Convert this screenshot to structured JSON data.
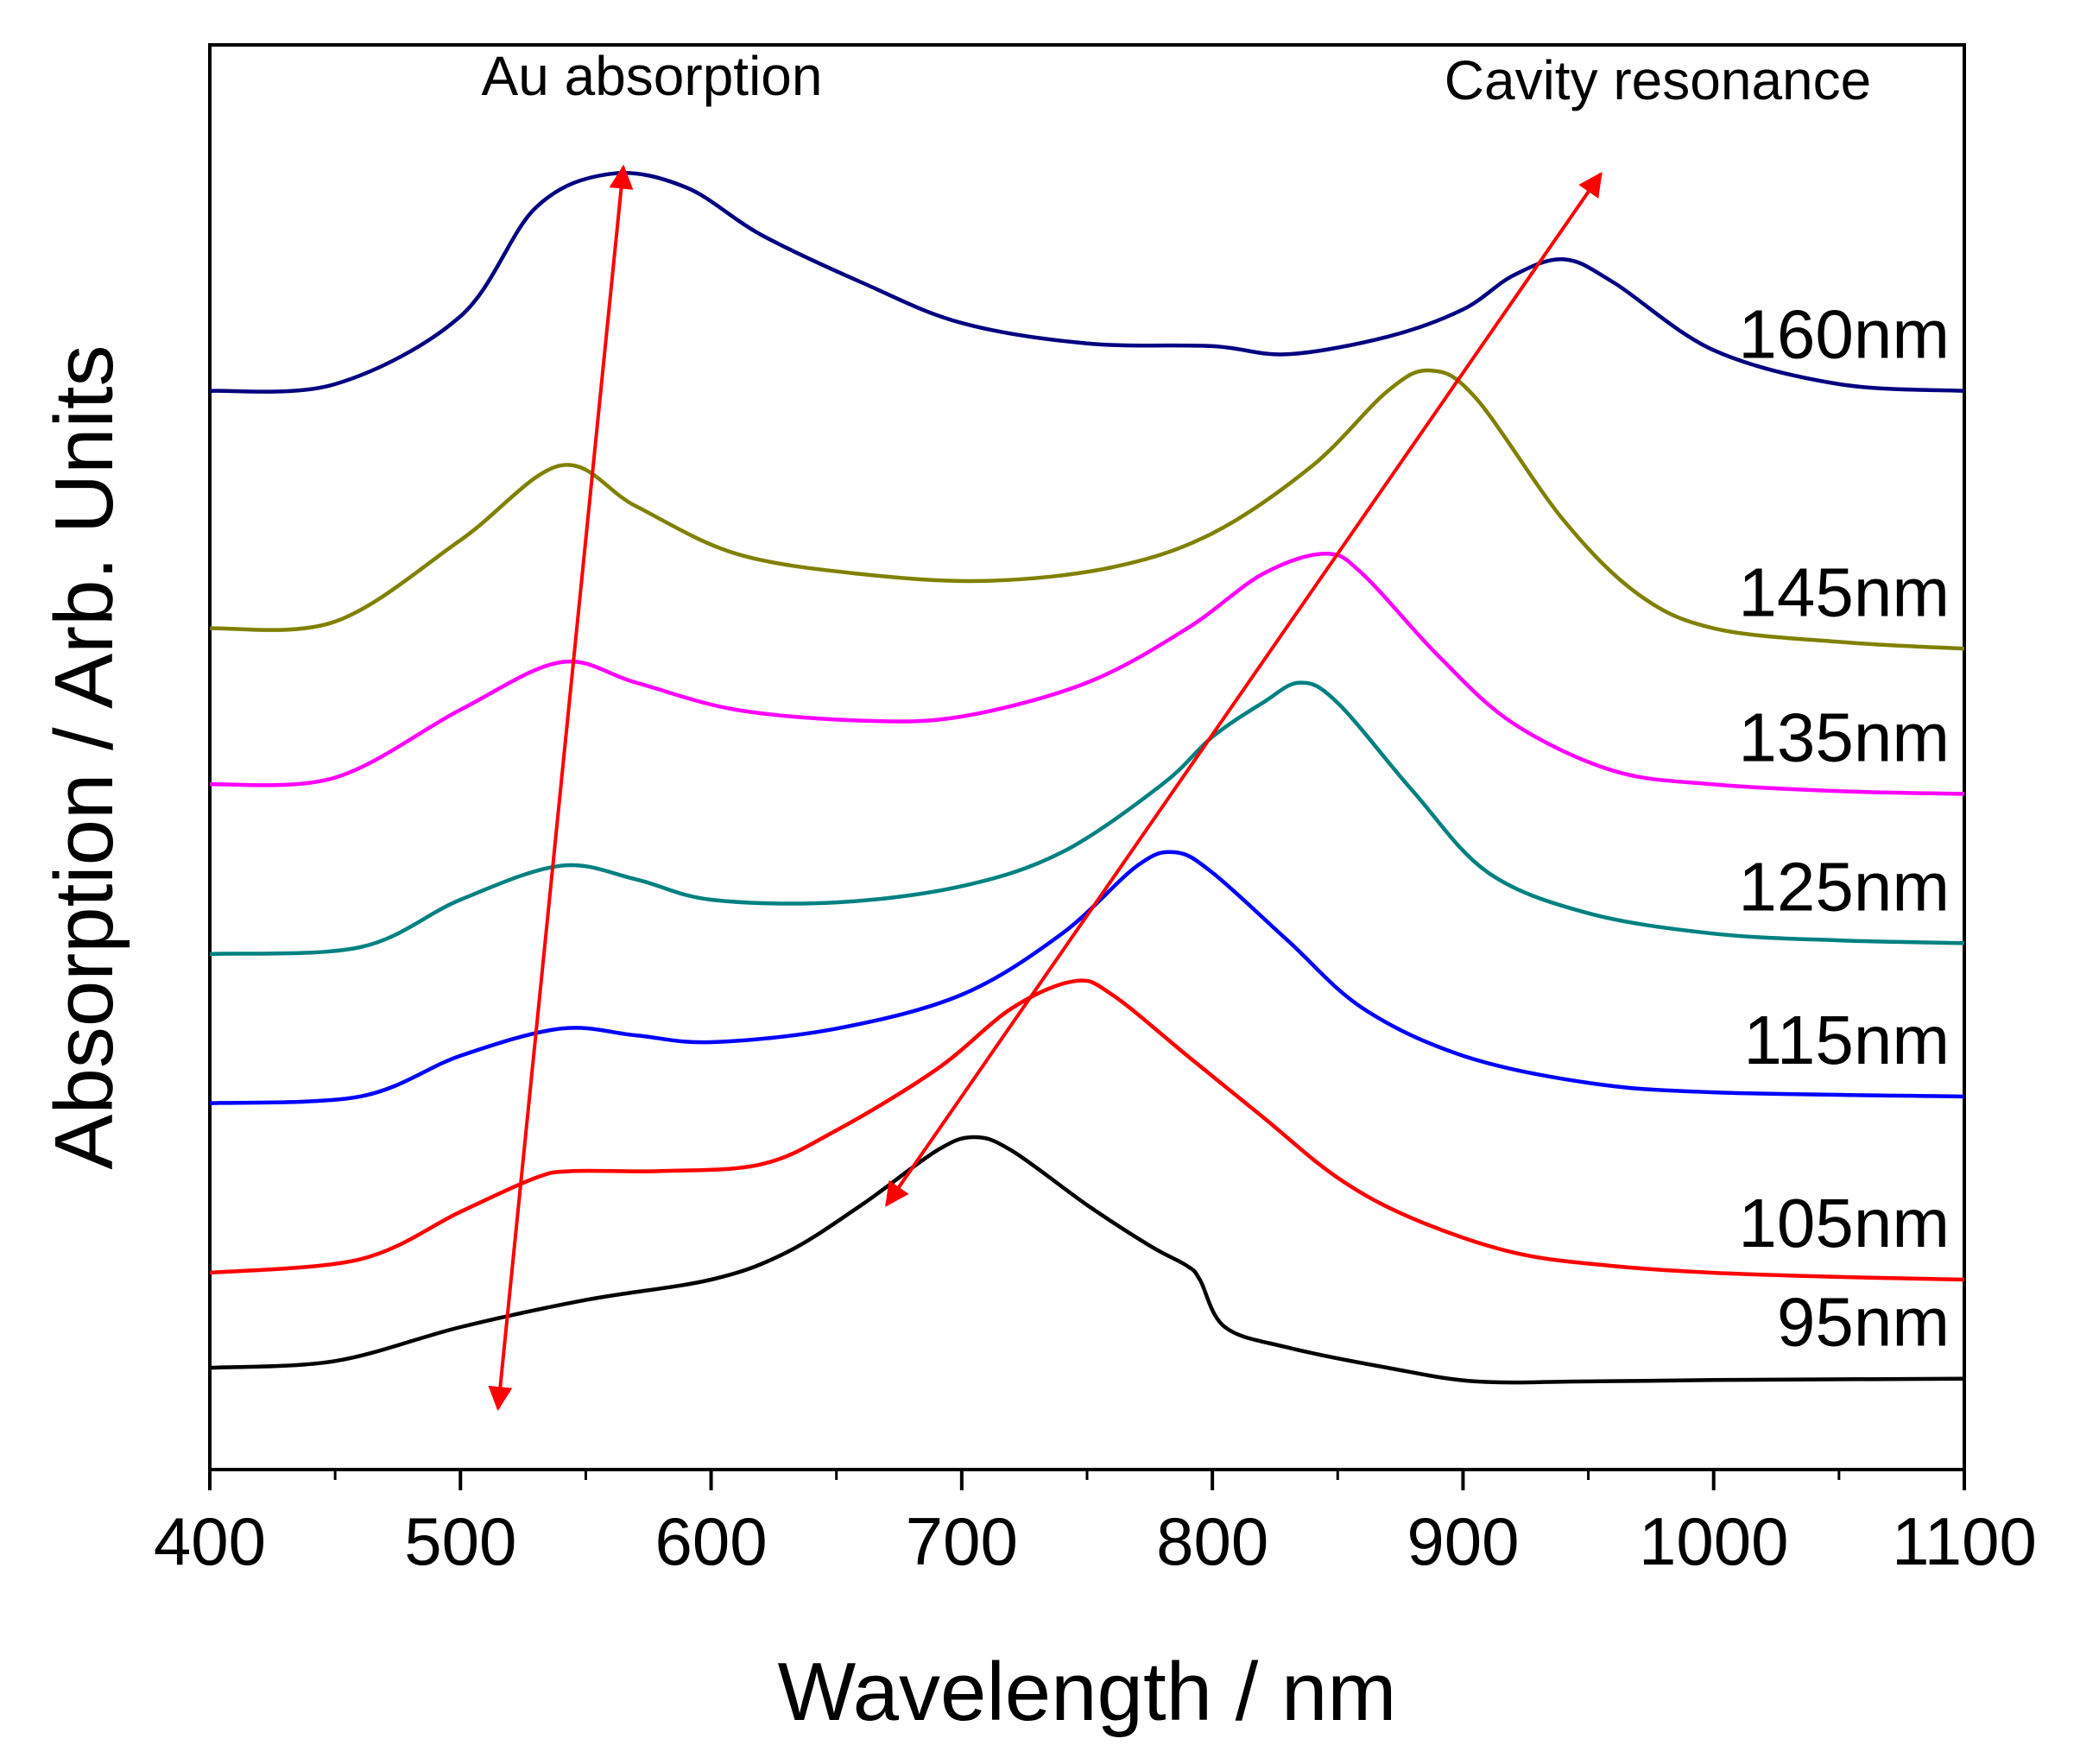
{
  "chart_data": {
    "type": "line",
    "title": "",
    "xlabel": "Wavelength / nm",
    "ylabel": "Absorption / Arb. Units",
    "xlim": [
      400,
      1100
    ],
    "ylim": [
      0,
      10.5
    ],
    "xticks": [
      400,
      500,
      600,
      700,
      800,
      900,
      1000,
      1100
    ],
    "grid": false,
    "legend": "inline labels at right end of each curve",
    "series": [
      {
        "name": "95nm",
        "color": "#000000",
        "points": [
          [
            400,
            0.75
          ],
          [
            450,
            0.8
          ],
          [
            500,
            1.05
          ],
          [
            550,
            1.25
          ],
          [
            600,
            1.4
          ],
          [
            630,
            1.6
          ],
          [
            660,
            1.95
          ],
          [
            690,
            2.35
          ],
          [
            705,
            2.45
          ],
          [
            720,
            2.35
          ],
          [
            750,
            1.95
          ],
          [
            775,
            1.65
          ],
          [
            790,
            1.5
          ],
          [
            795,
            1.4
          ],
          [
            805,
            1.05
          ],
          [
            830,
            0.9
          ],
          [
            870,
            0.75
          ],
          [
            905,
            0.65
          ],
          [
            950,
            0.65
          ],
          [
            1000,
            0.66
          ],
          [
            1100,
            0.67
          ]
        ]
      },
      {
        "name": "105nm",
        "color": "#ff0000",
        "points": [
          [
            400,
            1.45
          ],
          [
            460,
            1.55
          ],
          [
            500,
            1.9
          ],
          [
            530,
            2.15
          ],
          [
            545,
            2.2
          ],
          [
            580,
            2.2
          ],
          [
            620,
            2.25
          ],
          [
            650,
            2.5
          ],
          [
            690,
            2.95
          ],
          [
            720,
            3.4
          ],
          [
            745,
            3.6
          ],
          [
            760,
            3.5
          ],
          [
            790,
            3.05
          ],
          [
            820,
            2.6
          ],
          [
            850,
            2.15
          ],
          [
            880,
            1.85
          ],
          [
            920,
            1.6
          ],
          [
            960,
            1.5
          ],
          [
            1000,
            1.45
          ],
          [
            1050,
            1.42
          ],
          [
            1100,
            1.4
          ]
        ]
      },
      {
        "name": "115nm",
        "color": "#0000ff",
        "points": [
          [
            400,
            2.7
          ],
          [
            460,
            2.75
          ],
          [
            500,
            3.05
          ],
          [
            540,
            3.25
          ],
          [
            570,
            3.2
          ],
          [
            600,
            3.15
          ],
          [
            650,
            3.25
          ],
          [
            700,
            3.5
          ],
          [
            740,
            3.95
          ],
          [
            770,
            4.45
          ],
          [
            785,
            4.55
          ],
          [
            800,
            4.4
          ],
          [
            830,
            3.9
          ],
          [
            860,
            3.4
          ],
          [
            900,
            3.05
          ],
          [
            950,
            2.85
          ],
          [
            1000,
            2.78
          ],
          [
            1100,
            2.75
          ]
        ]
      },
      {
        "name": "125nm",
        "color": "#008080",
        "points": [
          [
            400,
            3.8
          ],
          [
            460,
            3.85
          ],
          [
            500,
            4.2
          ],
          [
            540,
            4.45
          ],
          [
            570,
            4.35
          ],
          [
            600,
            4.2
          ],
          [
            650,
            4.18
          ],
          [
            700,
            4.3
          ],
          [
            740,
            4.55
          ],
          [
            780,
            5.05
          ],
          [
            800,
            5.4
          ],
          [
            820,
            5.65
          ],
          [
            835,
            5.8
          ],
          [
            850,
            5.65
          ],
          [
            880,
            5.0
          ],
          [
            910,
            4.4
          ],
          [
            950,
            4.1
          ],
          [
            1000,
            3.95
          ],
          [
            1050,
            3.9
          ],
          [
            1100,
            3.88
          ]
        ]
      },
      {
        "name": "135nm",
        "color": "#ff00ff",
        "points": [
          [
            400,
            5.05
          ],
          [
            450,
            5.1
          ],
          [
            500,
            5.6
          ],
          [
            540,
            5.95
          ],
          [
            570,
            5.8
          ],
          [
            610,
            5.6
          ],
          [
            660,
            5.52
          ],
          [
            700,
            5.55
          ],
          [
            750,
            5.8
          ],
          [
            790,
            6.2
          ],
          [
            820,
            6.6
          ],
          [
            845,
            6.75
          ],
          [
            860,
            6.6
          ],
          [
            890,
            6.0
          ],
          [
            920,
            5.5
          ],
          [
            960,
            5.15
          ],
          [
            1000,
            5.05
          ],
          [
            1050,
            5.0
          ],
          [
            1100,
            4.98
          ]
        ]
      },
      {
        "name": "145nm",
        "color": "#808000",
        "points": [
          [
            400,
            6.2
          ],
          [
            450,
            6.25
          ],
          [
            500,
            6.85
          ],
          [
            540,
            7.4
          ],
          [
            570,
            7.1
          ],
          [
            610,
            6.75
          ],
          [
            660,
            6.6
          ],
          [
            710,
            6.55
          ],
          [
            760,
            6.65
          ],
          [
            800,
            6.9
          ],
          [
            840,
            7.4
          ],
          [
            870,
            7.95
          ],
          [
            887,
            8.1
          ],
          [
            905,
            7.9
          ],
          [
            940,
            7.0
          ],
          [
            970,
            6.45
          ],
          [
            1000,
            6.2
          ],
          [
            1050,
            6.1
          ],
          [
            1100,
            6.05
          ]
        ]
      },
      {
        "name": "160nm",
        "color": "#000080",
        "points": [
          [
            400,
            7.95
          ],
          [
            450,
            8.0
          ],
          [
            500,
            8.5
          ],
          [
            530,
            9.3
          ],
          [
            560,
            9.55
          ],
          [
            590,
            9.45
          ],
          [
            620,
            9.1
          ],
          [
            660,
            8.75
          ],
          [
            700,
            8.45
          ],
          [
            750,
            8.3
          ],
          [
            800,
            8.28
          ],
          [
            830,
            8.22
          ],
          [
            870,
            8.35
          ],
          [
            900,
            8.55
          ],
          [
            920,
            8.8
          ],
          [
            940,
            8.92
          ],
          [
            960,
            8.75
          ],
          [
            1000,
            8.25
          ],
          [
            1050,
            8.0
          ],
          [
            1100,
            7.95
          ]
        ]
      }
    ],
    "annotations": [
      {
        "text": "Au absorption",
        "arrow_from": [
          515,
          0.45
        ],
        "arrow_to": [
          565,
          9.6
        ]
      },
      {
        "text": "Cavity resonance",
        "arrow_from": [
          670,
          1.95
        ],
        "arrow_to": [
          955,
          9.55
        ]
      }
    ]
  }
}
